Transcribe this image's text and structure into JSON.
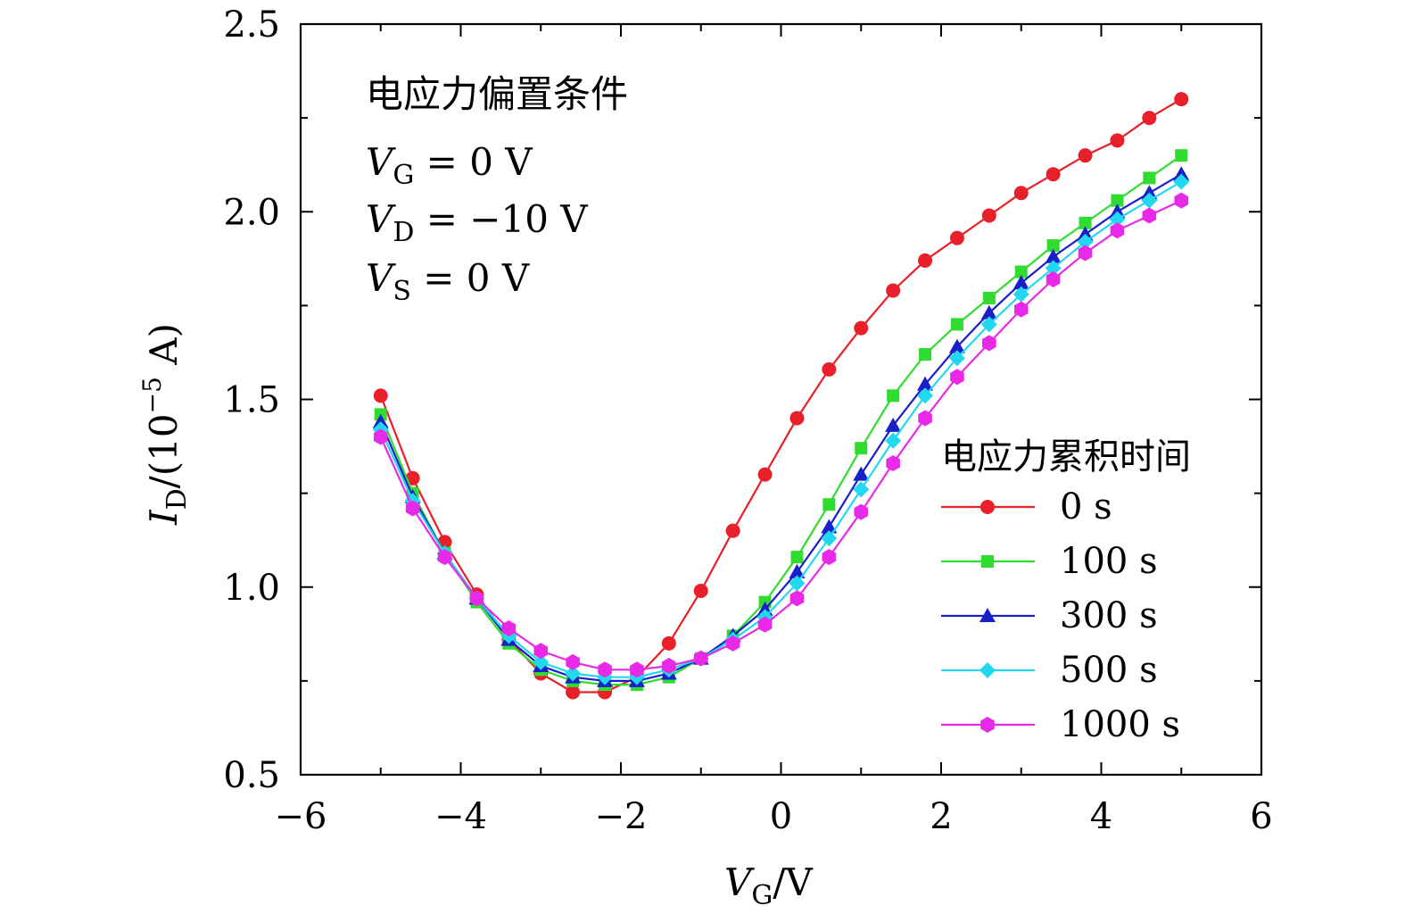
{
  "chart_data": {
    "type": "line",
    "xlabel": {
      "main": "V",
      "sub": "G",
      "unit": "/V"
    },
    "ylabel": {
      "main": "I",
      "sub": "D",
      "rest": "/(10",
      "exp": "−5",
      "unit": " A)"
    },
    "xlim": [
      -6,
      6
    ],
    "ylim": [
      0.5,
      2.5
    ],
    "xticks": [
      -6,
      -4,
      -2,
      0,
      2,
      4,
      6
    ],
    "xtick_labels": [
      "−6",
      "−4",
      "−2",
      "0",
      "2",
      "4",
      "6"
    ],
    "yticks": [
      0.5,
      1.0,
      1.5,
      2.0,
      2.5
    ],
    "ytick_labels": [
      "0.5",
      "1.0",
      "1.5",
      "2.0",
      "2.5"
    ],
    "grid": false,
    "legend_position": "center-right",
    "annotation": {
      "title": "电应力偏置条件",
      "lines": [
        {
          "sym": "V",
          "sub": "G",
          "eq": " = 0  V"
        },
        {
          "sym": "V",
          "sub": "D",
          "eq": " = −10  V"
        },
        {
          "sym": "V",
          "sub": "S",
          "eq": " = 0  V"
        }
      ]
    },
    "legend_title": "电应力累积时间",
    "series": [
      {
        "name": "0 s",
        "color": "#e8202a",
        "marker": "circle",
        "x": [
          -5,
          -4.6,
          -4.2,
          -3.8,
          -3.4,
          -3.0,
          -2.6,
          -2.2,
          -1.8,
          -1.4,
          -1.0,
          -0.6,
          -0.2,
          0.2,
          0.6,
          1.0,
          1.4,
          1.8,
          2.2,
          2.6,
          3.0,
          3.4,
          3.8,
          4.2,
          4.6,
          5.0
        ],
        "y": [
          1.51,
          1.29,
          1.12,
          0.98,
          0.86,
          0.77,
          0.72,
          0.72,
          0.76,
          0.85,
          0.99,
          1.15,
          1.3,
          1.45,
          1.58,
          1.69,
          1.79,
          1.87,
          1.93,
          1.99,
          2.05,
          2.1,
          2.15,
          2.19,
          2.25,
          2.3
        ]
      },
      {
        "name": "100 s",
        "color": "#2fdc2f",
        "marker": "square",
        "x": [
          -5,
          -4.6,
          -4.2,
          -3.8,
          -3.4,
          -3.0,
          -2.6,
          -2.2,
          -1.8,
          -1.4,
          -1.0,
          -0.6,
          -0.2,
          0.2,
          0.6,
          1.0,
          1.4,
          1.8,
          2.2,
          2.6,
          3.0,
          3.4,
          3.8,
          4.2,
          4.6,
          5.0
        ],
        "y": [
          1.46,
          1.25,
          1.09,
          0.96,
          0.85,
          0.78,
          0.75,
          0.74,
          0.74,
          0.76,
          0.81,
          0.87,
          0.96,
          1.08,
          1.22,
          1.37,
          1.51,
          1.62,
          1.7,
          1.77,
          1.84,
          1.91,
          1.97,
          2.03,
          2.09,
          2.15
        ]
      },
      {
        "name": "300 s",
        "color": "#1a20c8",
        "marker": "triangle",
        "x": [
          -5,
          -4.6,
          -4.2,
          -3.8,
          -3.4,
          -3.0,
          -2.6,
          -2.2,
          -1.8,
          -1.4,
          -1.0,
          -0.6,
          -0.2,
          0.2,
          0.6,
          1.0,
          1.4,
          1.8,
          2.2,
          2.6,
          3.0,
          3.4,
          3.8,
          4.2,
          4.6,
          5.0
        ],
        "y": [
          1.44,
          1.24,
          1.09,
          0.97,
          0.86,
          0.79,
          0.76,
          0.75,
          0.75,
          0.77,
          0.81,
          0.87,
          0.94,
          1.04,
          1.16,
          1.3,
          1.43,
          1.54,
          1.64,
          1.73,
          1.81,
          1.88,
          1.94,
          2.0,
          2.05,
          2.1
        ]
      },
      {
        "name": "500 s",
        "color": "#22d8f0",
        "marker": "diamond",
        "x": [
          -5,
          -4.6,
          -4.2,
          -3.8,
          -3.4,
          -3.0,
          -2.6,
          -2.2,
          -1.8,
          -1.4,
          -1.0,
          -0.6,
          -0.2,
          0.2,
          0.6,
          1.0,
          1.4,
          1.8,
          2.2,
          2.6,
          3.0,
          3.4,
          3.8,
          4.2,
          4.6,
          5.0
        ],
        "y": [
          1.42,
          1.23,
          1.09,
          0.97,
          0.87,
          0.8,
          0.77,
          0.76,
          0.76,
          0.78,
          0.81,
          0.86,
          0.92,
          1.01,
          1.13,
          1.26,
          1.39,
          1.51,
          1.61,
          1.7,
          1.78,
          1.85,
          1.92,
          1.98,
          2.03,
          2.08
        ]
      },
      {
        "name": "1000 s",
        "color": "#e82ae8",
        "marker": "hexagon",
        "x": [
          -5,
          -4.6,
          -4.2,
          -3.8,
          -3.4,
          -3.0,
          -2.6,
          -2.2,
          -1.8,
          -1.4,
          -1.0,
          -0.6,
          -0.2,
          0.2,
          0.6,
          1.0,
          1.4,
          1.8,
          2.2,
          2.6,
          3.0,
          3.4,
          3.8,
          4.2,
          4.6,
          5.0
        ],
        "y": [
          1.4,
          1.21,
          1.08,
          0.97,
          0.89,
          0.83,
          0.8,
          0.78,
          0.78,
          0.79,
          0.81,
          0.85,
          0.9,
          0.97,
          1.08,
          1.2,
          1.33,
          1.45,
          1.56,
          1.65,
          1.74,
          1.82,
          1.89,
          1.95,
          1.99,
          2.03
        ]
      }
    ]
  }
}
